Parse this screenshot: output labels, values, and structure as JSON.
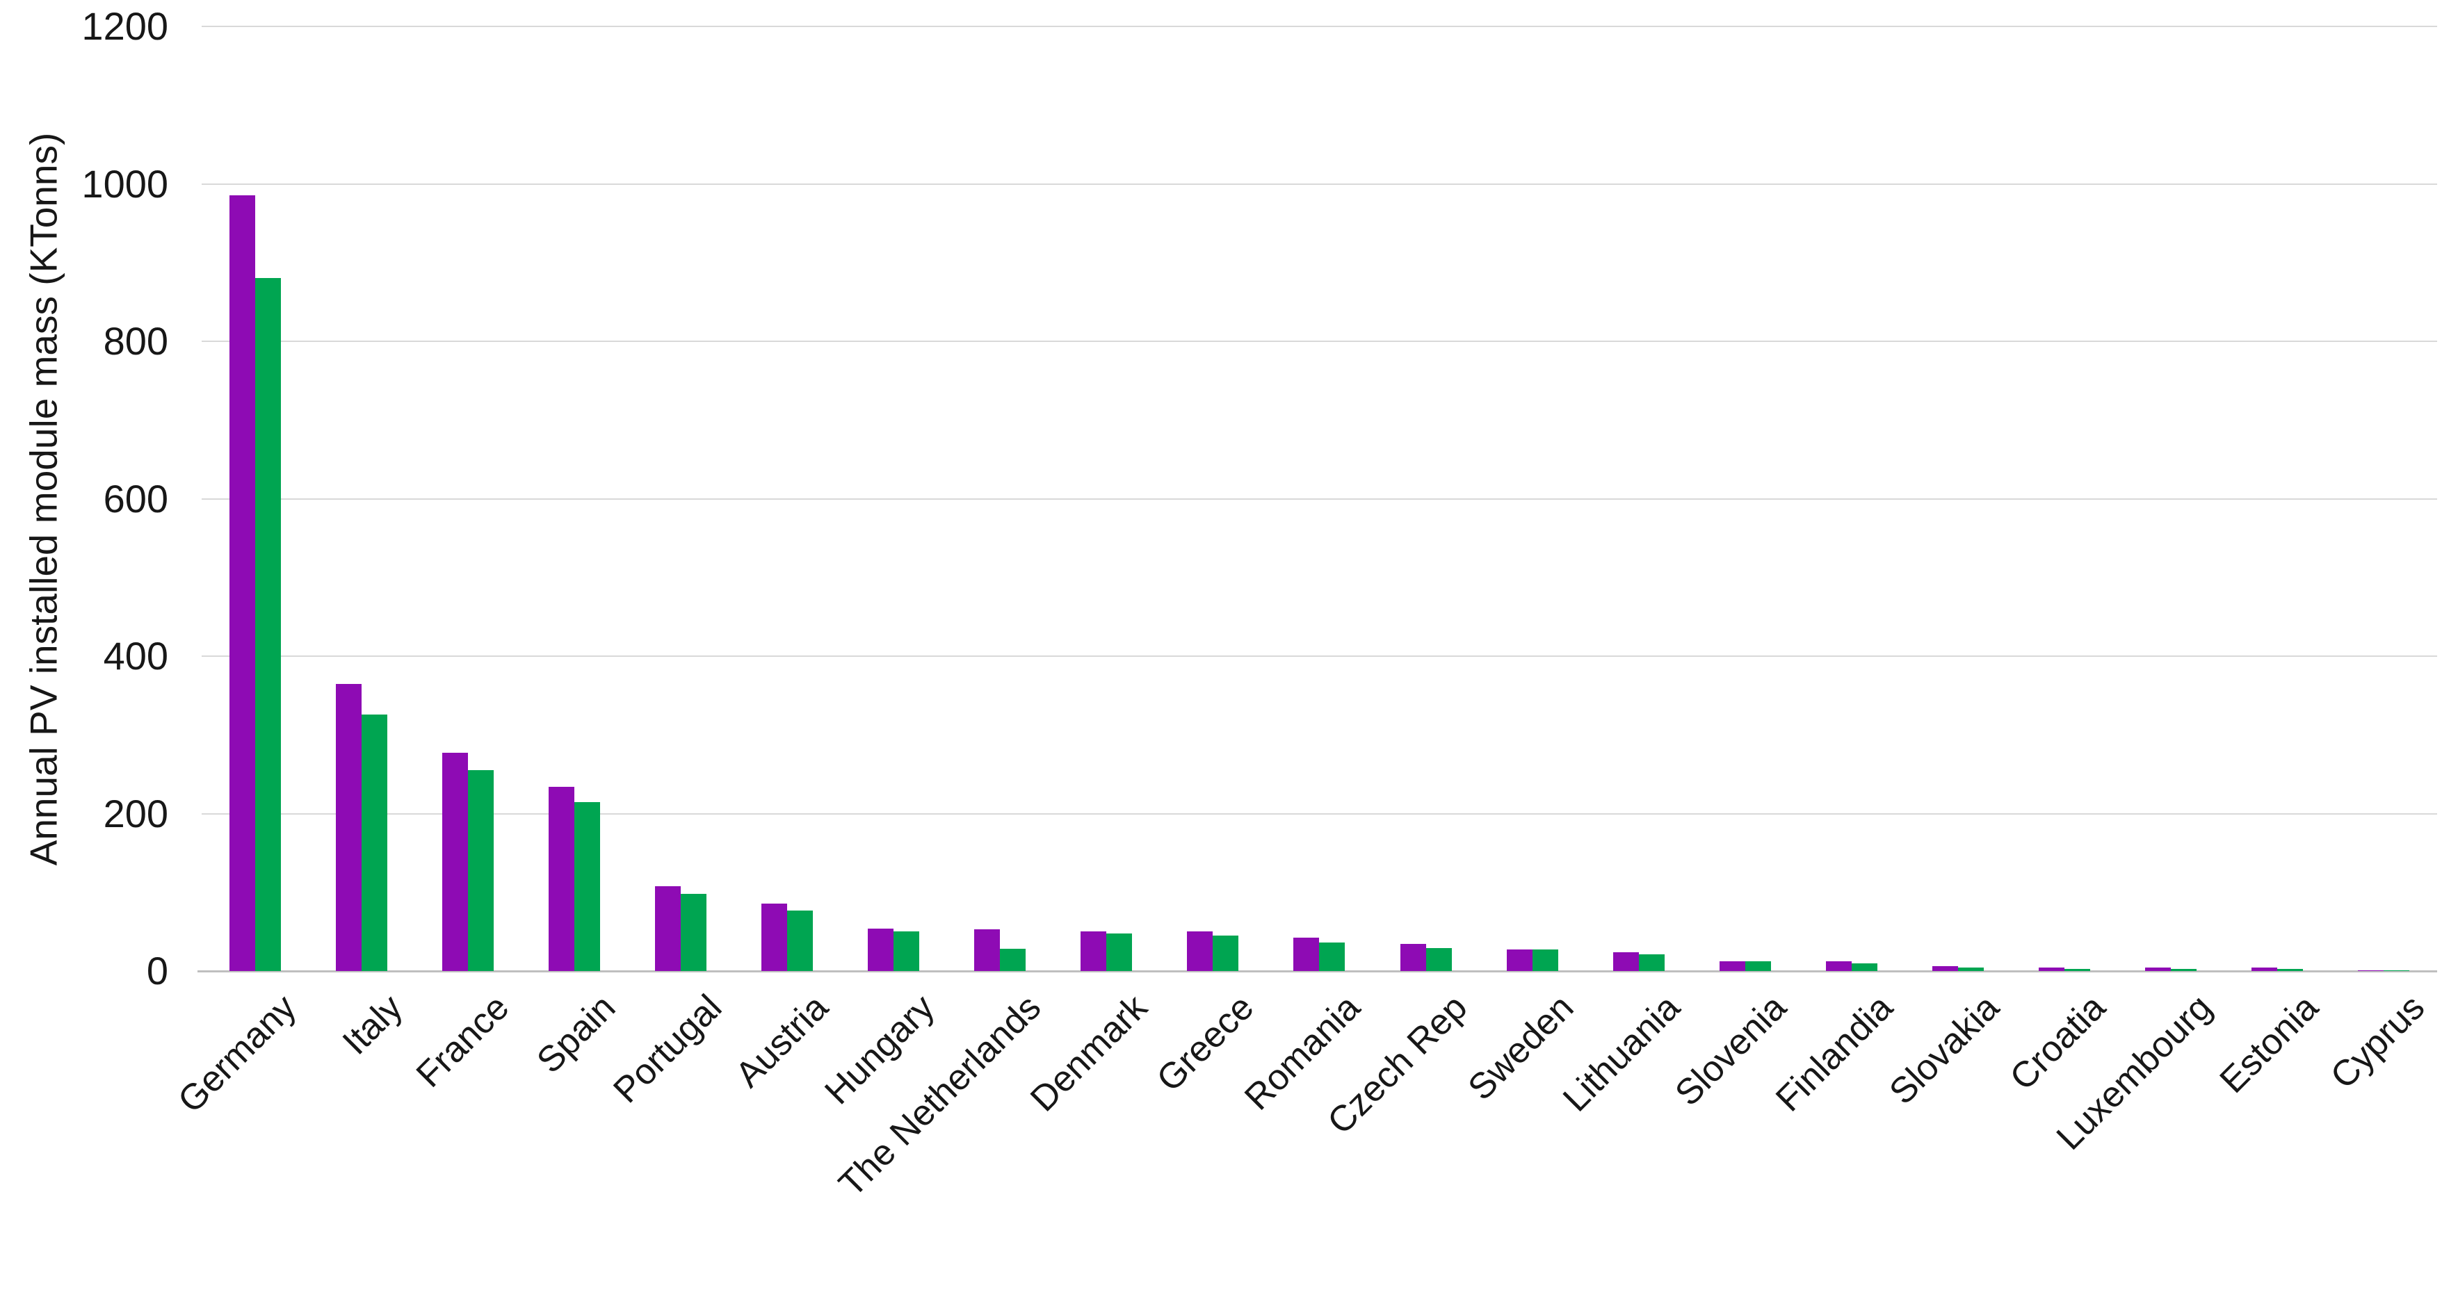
{
  "chart_data": {
    "type": "bar",
    "title": "",
    "ylabel": "Annual PV installed module mass (KTonns)",
    "xlabel": "",
    "ylim": [
      0,
      1200
    ],
    "yticks": [
      0,
      200,
      400,
      600,
      800,
      1000,
      1200
    ],
    "grid": "horizontal",
    "legend": "none",
    "categories": [
      "Germany",
      "Italy",
      "France",
      "Spain",
      "Portugal",
      "Austria",
      "Hungary",
      "The Netherlands",
      "Denmark",
      "Greece",
      "Romania",
      "Czech Rep",
      "Sweden",
      "Lithuania",
      "Slovenia",
      "Finlandia",
      "Slovakia",
      "Croatia",
      "Luxembourg",
      "Estonia",
      "Cyprus"
    ],
    "series": [
      {
        "name": "purple",
        "color": "#8E0BB4",
        "values": [
          985,
          365,
          277,
          234,
          108,
          86,
          54,
          53,
          50,
          50,
          42,
          34,
          27,
          24,
          12,
          12,
          6,
          4,
          4,
          4,
          1
        ]
      },
      {
        "name": "green",
        "color": "#00A551",
        "values": [
          880,
          326,
          255,
          215,
          98,
          77,
          50,
          28,
          48,
          45,
          36,
          29,
          27,
          21,
          12,
          10,
          4,
          3,
          3,
          3,
          0.5
        ]
      }
    ],
    "colors": {
      "gridline": "#d9d9d9",
      "axis_line": "#bfbfbf",
      "text": "#171717",
      "background": "#ffffff"
    }
  }
}
